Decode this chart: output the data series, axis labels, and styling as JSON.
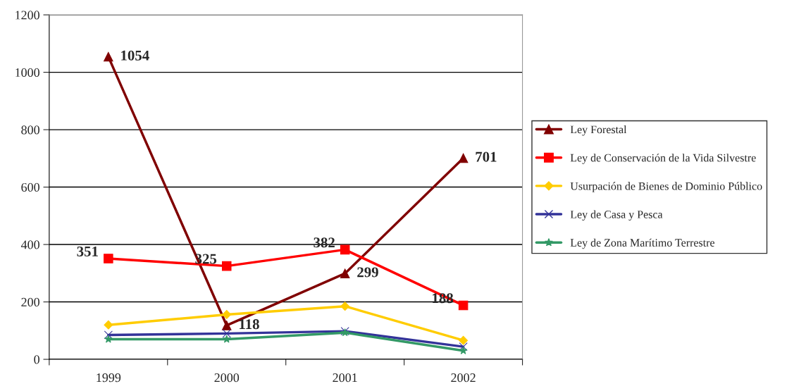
{
  "chart_data": {
    "type": "line",
    "categories": [
      "1999",
      "2000",
      "2001",
      "2002"
    ],
    "ylim": [
      0,
      1200
    ],
    "yticks": [
      0,
      200,
      400,
      600,
      800,
      1000,
      1200
    ],
    "grid": "y",
    "legend": "right",
    "series": [
      {
        "name": "Ley Forestal",
        "color": "#800000",
        "marker": "triangle",
        "values": [
          1054,
          118,
          299,
          701
        ],
        "value_labels": [
          "1054",
          "118",
          "299",
          "701"
        ]
      },
      {
        "name": "Ley de Conservación de la Vida Silvestre",
        "color": "#ff0000",
        "marker": "square",
        "values": [
          351,
          325,
          382,
          188
        ],
        "value_labels": [
          "351",
          "325",
          "382",
          "188"
        ]
      },
      {
        "name": "Usurpación de Bienes de Dominio Público",
        "color": "#ffcc00",
        "marker": "diamond",
        "values": [
          120,
          156,
          185,
          66
        ]
      },
      {
        "name": "Ley de Casa y Pesca",
        "color": "#333399",
        "marker": "cross",
        "values": [
          85,
          90,
          98,
          44
        ]
      },
      {
        "name": "Ley de Zona Marítimo Terrestre",
        "color": "#339966",
        "marker": "star",
        "values": [
          70,
          70,
          93,
          30
        ]
      }
    ]
  }
}
